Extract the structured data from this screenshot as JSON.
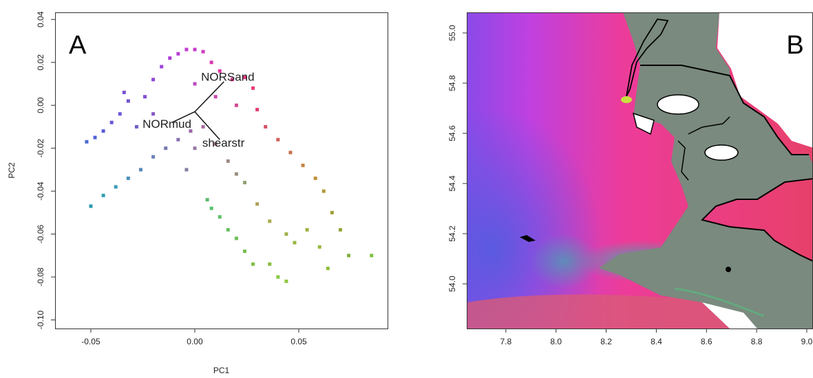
{
  "chart_data": [
    {
      "type": "scatter",
      "panel_label": "A",
      "x_label": "PC1",
      "y_label": "PC2",
      "xlim": [
        -0.0672,
        0.0927
      ],
      "ylim": [
        -0.104,
        0.0433
      ],
      "xticks": [
        {
          "value": -0.05,
          "label": "-0.05"
        },
        {
          "value": 0,
          "label": "0.00"
        },
        {
          "value": 0.05,
          "label": "0.05"
        }
      ],
      "yticks": [
        {
          "value": -0.1,
          "label": "-0.10"
        },
        {
          "value": -0.08,
          "label": "-0.08"
        },
        {
          "value": -0.06,
          "label": "-0.06"
        },
        {
          "value": -0.04,
          "label": "-0.04"
        },
        {
          "value": -0.02,
          "label": "-0.02"
        },
        {
          "value": 0,
          "label": "0.00"
        },
        {
          "value": 0.02,
          "label": "0.02"
        },
        {
          "value": 0.04,
          "label": "0.04"
        }
      ],
      "x": [
        -0.052,
        -0.048,
        -0.044,
        -0.04,
        -0.036,
        -0.034,
        -0.032,
        -0.028,
        -0.024,
        -0.02,
        -0.016,
        -0.012,
        -0.008,
        -0.004,
        0.0,
        0.004,
        0.008,
        0.012,
        0.018,
        0.024,
        0.028,
        0.03,
        0.034,
        0.04,
        0.046,
        0.052,
        0.058,
        0.062,
        0.066,
        0.07,
        0.074,
        0.085,
        -0.05,
        -0.044,
        -0.038,
        -0.032,
        -0.026,
        -0.02,
        -0.014,
        -0.008,
        -0.002,
        0.004,
        0.01,
        0.016,
        0.02,
        0.024,
        0.006,
        0.008,
        0.012,
        0.016,
        0.02,
        0.024,
        0.028,
        0.036,
        0.04,
        0.044,
        0.048,
        0.054,
        0.06,
        0.064,
        0.044,
        0.036,
        0.03,
        -0.004,
        0.0,
        -0.02,
        0.01,
        0.02,
        0.0
      ],
      "y": [
        -0.017,
        -0.015,
        -0.012,
        -0.008,
        -0.004,
        0.006,
        0.002,
        -0.01,
        0.004,
        0.012,
        0.018,
        0.022,
        0.024,
        0.026,
        0.026,
        0.025,
        0.02,
        0.016,
        0.012,
        0.013,
        0.008,
        -0.002,
        -0.01,
        -0.016,
        -0.022,
        -0.028,
        -0.034,
        -0.04,
        -0.05,
        -0.058,
        -0.07,
        -0.07,
        -0.047,
        -0.042,
        -0.038,
        -0.034,
        -0.03,
        -0.024,
        -0.02,
        -0.016,
        -0.012,
        -0.01,
        -0.018,
        -0.026,
        -0.032,
        -0.036,
        -0.044,
        -0.048,
        -0.052,
        -0.058,
        -0.062,
        -0.068,
        -0.074,
        -0.074,
        -0.08,
        -0.082,
        -0.064,
        -0.058,
        -0.066,
        -0.076,
        -0.06,
        -0.054,
        -0.046,
        -0.03,
        -0.02,
        -0.004,
        0.004,
        0.0,
        0.01
      ],
      "colors": [
        "#4a6ad0",
        "#5060d8",
        "#5a5ad8",
        "#6658d8",
        "#7055d8",
        "#7a50d8",
        "#7250d0",
        "#6a60c8",
        "#8050d8",
        "#9048d8",
        "#a044d8",
        "#b040d8",
        "#b83ed8",
        "#c03cd0",
        "#c83ccc",
        "#d03cc0",
        "#d838b0",
        "#e038a0",
        "#e43a90",
        "#e83a80",
        "#e83c78",
        "#e04070",
        "#d85068",
        "#d06058",
        "#c87048",
        "#c88040",
        "#c09038",
        "#b09838",
        "#a0a038",
        "#90a838",
        "#80b040",
        "#80c040",
        "#2a9ab0",
        "#30a0b0",
        "#3a9cb8",
        "#4a90b8",
        "#5a88b8",
        "#6a80b8",
        "#7878b0",
        "#8a70b0",
        "#9a68a8",
        "#a86aa0",
        "#a87a90",
        "#a08a88",
        "#989080",
        "#90a070",
        "#60b870",
        "#58c070",
        "#60c068",
        "#68c060",
        "#70c058",
        "#78c050",
        "#80c048",
        "#88c040",
        "#88c840",
        "#90c840",
        "#98b840",
        "#a0b040",
        "#98b840",
        "#90c040",
        "#a0b048",
        "#a8a850",
        "#b0a058",
        "#8880a0",
        "#9878a0",
        "#8a58c8",
        "#c848b0",
        "#d04890",
        "#b848c0"
      ],
      "arrows": [
        {
          "label": "NORSand",
          "x0": 0.0,
          "y0": -0.003,
          "x1": 0.014,
          "y1": 0.011
        },
        {
          "label": "NORmud",
          "x0": 0.0,
          "y0": -0.003,
          "x1": -0.011,
          "y1": -0.008
        },
        {
          "label": "shearstr",
          "x0": 0.0,
          "y0": -0.003,
          "x1": 0.012,
          "y1": -0.016
        }
      ]
    },
    {
      "type": "map",
      "panel_label": "B",
      "xlim": [
        7.644,
        9.022
      ],
      "ylim": [
        53.822,
        55.082
      ],
      "xticks": [
        {
          "value": 7.8,
          "label": "7.8"
        },
        {
          "value": 8.0,
          "label": "8.0"
        },
        {
          "value": 8.2,
          "label": "8.2"
        },
        {
          "value": 8.4,
          "label": "8.4"
        },
        {
          "value": 8.6,
          "label": "8.6"
        },
        {
          "value": 8.8,
          "label": "8.8"
        },
        {
          "value": 9.0,
          "label": "9.0"
        }
      ],
      "yticks": [
        {
          "value": 54.0,
          "label": "54.0"
        },
        {
          "value": 54.2,
          "label": "54.2"
        },
        {
          "value": 54.4,
          "label": "54.4"
        },
        {
          "value": 54.6,
          "label": "54.6"
        },
        {
          "value": 54.8,
          "label": "54.8"
        },
        {
          "value": 55.0,
          "label": "55.0"
        }
      ]
    }
  ]
}
